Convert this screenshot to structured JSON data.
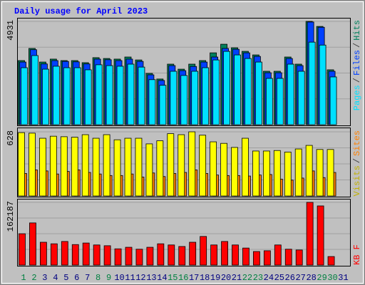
{
  "chart_data": [
    {
      "type": "bar",
      "title": "Daily usage for April 2023",
      "legend_separator": "/",
      "ylim": [
        0,
        4931
      ],
      "yticks": [
        4931
      ],
      "series": [
        {
          "name": "Hits",
          "color": "#00805c",
          "values": [
            3060,
            3640,
            2990,
            3130,
            3060,
            3060,
            2960,
            3200,
            3160,
            3130,
            3230,
            3090,
            2450,
            2180,
            2890,
            2650,
            2890,
            3060,
            3430,
            3840,
            3670,
            3500,
            3330,
            2550,
            2550,
            3230,
            2890,
            4931,
            4690,
            2620,
            null
          ]
        },
        {
          "name": "Files",
          "color": "#0040ff",
          "values": [
            2990,
            3580,
            2900,
            3060,
            3020,
            3000,
            2900,
            3130,
            3100,
            3060,
            3130,
            3020,
            2380,
            2110,
            2820,
            2580,
            2780,
            2990,
            3230,
            3640,
            3600,
            3430,
            3260,
            2480,
            2480,
            3160,
            2820,
            4900,
            4650,
            2550,
            null
          ]
        },
        {
          "name": "Pages",
          "color": "#00e0ff",
          "values": [
            2720,
            3300,
            2650,
            2790,
            2720,
            2720,
            2620,
            2860,
            2820,
            2790,
            2890,
            2750,
            2150,
            1880,
            2550,
            2350,
            2550,
            2720,
            3090,
            3500,
            3330,
            3160,
            2990,
            2210,
            2210,
            2890,
            2550,
            3940,
            3800,
            2280,
            null
          ]
        }
      ]
    },
    {
      "type": "bar",
      "legend_separator": "/",
      "ylim": [
        0,
        628
      ],
      "yticks": [
        628
      ],
      "series": [
        {
          "name": "Sites",
          "color": "#ff8000",
          "values": [
            220,
            255,
            245,
            215,
            240,
            255,
            230,
            215,
            200,
            200,
            215,
            185,
            225,
            190,
            220,
            230,
            255,
            220,
            205,
            200,
            200,
            195,
            205,
            210,
            165,
            155,
            175,
            245,
            180,
            230,
            null
          ]
        },
        {
          "name": "Visits",
          "color": "#ffff00",
          "values": [
            620,
            615,
            565,
            585,
            580,
            575,
            600,
            565,
            600,
            550,
            565,
            565,
            510,
            540,
            610,
            600,
            628,
            595,
            530,
            515,
            475,
            565,
            440,
            440,
            445,
            430,
            460,
            495,
            455,
            455,
            null
          ]
        }
      ]
    },
    {
      "type": "bar",
      "ylim": [
        0,
        162187
      ],
      "yticks": [
        162187
      ],
      "categories": [
        "1",
        "2",
        "3",
        "4",
        "5",
        "6",
        "7",
        "8",
        "9",
        "10",
        "11",
        "12",
        "13",
        "14",
        "15",
        "16",
        "17",
        "18",
        "19",
        "20",
        "21",
        "22",
        "23",
        "24",
        "25",
        "26",
        "27",
        "28",
        "29",
        "30",
        "31"
      ],
      "category_colors": [
        "#008040",
        "#008040",
        "#000080",
        "#000080",
        "#000080",
        "#000080",
        "#000080",
        "#008040",
        "#008040",
        "#000080",
        "#000080",
        "#000080",
        "#000080",
        "#000080",
        "#008040",
        "#008040",
        "#000080",
        "#000080",
        "#000080",
        "#000080",
        "#000080",
        "#008040",
        "#008040",
        "#000080",
        "#000080",
        "#000080",
        "#000080",
        "#000080",
        "#008040",
        "#008040",
        "#000080"
      ],
      "series": [
        {
          "name": "KB F",
          "color": "#ff0000",
          "values": [
            81000,
            109000,
            59000,
            55000,
            61000,
            53000,
            57000,
            52000,
            50000,
            42000,
            46000,
            41000,
            46000,
            55000,
            52000,
            48000,
            59000,
            74000,
            52000,
            61000,
            52000,
            44000,
            35000,
            37000,
            52000,
            41000,
            39000,
            162187,
            153000,
            22000,
            null
          ]
        }
      ]
    }
  ]
}
